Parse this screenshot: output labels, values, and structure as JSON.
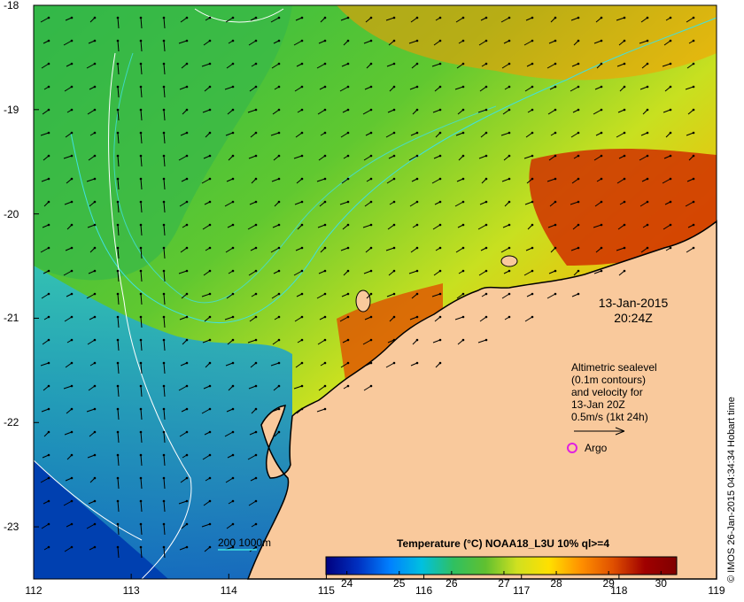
{
  "map": {
    "lon_range": [
      112,
      119
    ],
    "lat_range": [
      -23.5,
      -18
    ],
    "x_ticks": [
      "112",
      "113",
      "114",
      "115",
      "116",
      "117",
      "118",
      "119"
    ],
    "y_ticks": [
      "-18",
      "-19",
      "-20",
      "-21",
      "-22",
      "-23"
    ],
    "land_color": "#f9c99c",
    "date_line1": "13-Jan-2015",
    "date_line2": "20:24Z"
  },
  "altimetry": {
    "line1": "Altimetric sealevel",
    "line2": "(0.1m contours)",
    "line3": "and velocity for",
    "line4": "13-Jan 20Z",
    "scale_label": "0.5m/s (1kt 24h)"
  },
  "argo": {
    "label": "Argo",
    "color": "#e020e0"
  },
  "colorbar": {
    "title": "Temperature (°C) NOAA18_L3U 10% ql>=4",
    "ticks": [
      "24",
      "25",
      "26",
      "27",
      "28",
      "29",
      "30"
    ],
    "range": [
      23.6,
      30.3
    ],
    "colors": [
      "#00007f",
      "#0030c0",
      "#0080ff",
      "#00c0e0",
      "#30c060",
      "#60c030",
      "#d0e020",
      "#ffe000",
      "#ff9000",
      "#e05000",
      "#a00000",
      "#800000"
    ]
  },
  "depth_legend": {
    "label": "200  1000m",
    "color": "#40e0e0"
  },
  "credit": "© IMOS 26-Jan-2015 04:34:34 Hobart time"
}
